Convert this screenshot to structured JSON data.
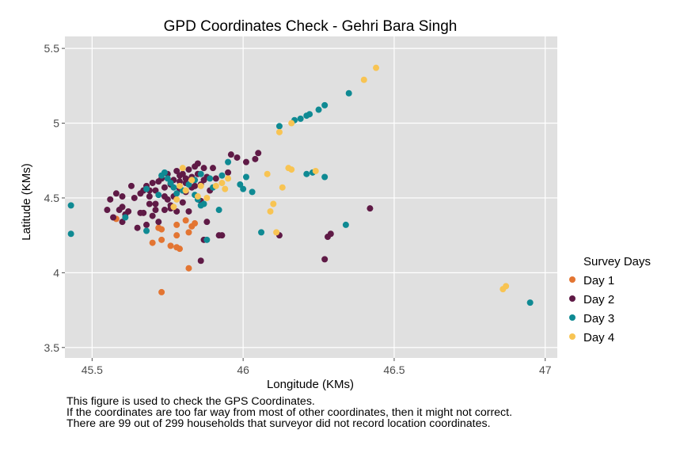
{
  "chart_data": {
    "type": "scatter",
    "title": "GPD Coordinates Check - Gehri Bara Singh",
    "xlabel": "Longitude (KMs)",
    "ylabel": "Latitude (KMs)",
    "xlim": [
      45.41,
      47.04
    ],
    "ylim": [
      3.43,
      5.58
    ],
    "xticks": [
      45.5,
      46,
      46.5,
      47
    ],
    "xtick_labels": [
      "45.5",
      "46",
      "46.5",
      "47"
    ],
    "yticks": [
      3.5,
      4,
      4.5,
      5,
      5.5
    ],
    "ytick_labels": [
      "3.5",
      "4",
      "4.5",
      "5",
      "5.5"
    ],
    "grid": true,
    "legend": {
      "title": "Survey Days",
      "placement": "right"
    },
    "series": [
      {
        "name": "Day 1",
        "color": "#e37532",
        "points": [
          [
            45.58,
            4.36
          ],
          [
            45.7,
            4.2
          ],
          [
            45.72,
            4.3
          ],
          [
            45.73,
            4.29
          ],
          [
            45.73,
            4.22
          ],
          [
            45.76,
            4.18
          ],
          [
            45.78,
            4.32
          ],
          [
            45.78,
            4.25
          ],
          [
            45.79,
            4.16
          ],
          [
            45.81,
            4.35
          ],
          [
            45.82,
            4.03
          ],
          [
            45.82,
            4.27
          ],
          [
            45.83,
            4.31
          ],
          [
            45.73,
            3.87
          ],
          [
            45.72,
            4.3
          ],
          [
            45.78,
            4.17
          ],
          [
            45.84,
            4.33
          ]
        ]
      },
      {
        "name": "Day 2",
        "color": "#5f1a46",
        "points": [
          [
            45.55,
            4.42
          ],
          [
            45.56,
            4.49
          ],
          [
            45.57,
            4.37
          ],
          [
            45.58,
            4.53
          ],
          [
            45.59,
            4.42
          ],
          [
            45.6,
            4.51
          ],
          [
            45.6,
            4.44
          ],
          [
            45.6,
            4.34
          ],
          [
            45.61,
            4.39
          ],
          [
            45.62,
            4.41
          ],
          [
            45.63,
            4.58
          ],
          [
            45.64,
            4.5
          ],
          [
            45.65,
            4.3
          ],
          [
            45.66,
            4.4
          ],
          [
            45.67,
            4.55
          ],
          [
            45.67,
            4.4
          ],
          [
            45.68,
            4.58
          ],
          [
            45.68,
            4.32
          ],
          [
            45.69,
            4.46
          ],
          [
            45.69,
            4.55
          ],
          [
            45.7,
            4.6
          ],
          [
            45.7,
            4.38
          ],
          [
            45.71,
            4.55
          ],
          [
            45.71,
            4.42
          ],
          [
            45.72,
            4.61
          ],
          [
            45.72,
            4.34
          ],
          [
            45.73,
            4.63
          ],
          [
            45.74,
            4.51
          ],
          [
            45.74,
            4.42
          ],
          [
            45.75,
            4.49
          ],
          [
            45.75,
            4.66
          ],
          [
            45.76,
            4.59
          ],
          [
            45.76,
            4.45
          ],
          [
            45.77,
            4.62
          ],
          [
            45.77,
            4.51
          ],
          [
            45.78,
            4.68
          ],
          [
            45.78,
            4.41
          ],
          [
            45.79,
            4.65
          ],
          [
            45.79,
            4.56
          ],
          [
            45.8,
            4.66
          ],
          [
            45.8,
            4.47
          ],
          [
            45.81,
            4.63
          ],
          [
            45.81,
            4.54
          ],
          [
            45.82,
            4.69
          ],
          [
            45.82,
            4.41
          ],
          [
            45.83,
            4.64
          ],
          [
            45.84,
            4.71
          ],
          [
            45.84,
            4.58
          ],
          [
            45.85,
            4.73
          ],
          [
            45.85,
            4.66
          ],
          [
            45.86,
            4.59
          ],
          [
            45.86,
            4.48
          ],
          [
            45.87,
            4.7
          ],
          [
            45.88,
            4.64
          ],
          [
            45.88,
            4.34
          ],
          [
            45.89,
            4.55
          ],
          [
            45.9,
            4.7
          ],
          [
            45.91,
            4.63
          ],
          [
            45.92,
            4.25
          ],
          [
            45.93,
            4.25
          ],
          [
            45.95,
            4.67
          ],
          [
            45.96,
            4.79
          ],
          [
            45.98,
            4.77
          ],
          [
            46.01,
            4.74
          ],
          [
            46.04,
            4.76
          ],
          [
            46.05,
            4.8
          ],
          [
            46.12,
            4.25
          ],
          [
            46.27,
            4.09
          ],
          [
            46.28,
            4.24
          ],
          [
            46.29,
            4.26
          ],
          [
            46.42,
            4.43
          ],
          [
            45.86,
            4.08
          ],
          [
            45.87,
            4.22
          ],
          [
            45.71,
            4.46
          ],
          [
            45.66,
            4.53
          ],
          [
            45.79,
            4.61
          ],
          [
            45.83,
            4.57
          ],
          [
            45.87,
            4.62
          ],
          [
            45.76,
            4.43
          ],
          [
            45.81,
            4.6
          ],
          [
            45.69,
            4.51
          ],
          [
            45.74,
            4.57
          ]
        ]
      },
      {
        "name": "Day 3",
        "color": "#0f8a93",
        "points": [
          [
            45.43,
            4.45
          ],
          [
            45.43,
            4.26
          ],
          [
            45.61,
            4.37
          ],
          [
            45.68,
            4.28
          ],
          [
            45.68,
            4.56
          ],
          [
            45.72,
            4.52
          ],
          [
            45.73,
            4.65
          ],
          [
            45.74,
            4.67
          ],
          [
            45.75,
            4.63
          ],
          [
            45.76,
            4.6
          ],
          [
            45.77,
            4.57
          ],
          [
            45.78,
            4.53
          ],
          [
            45.8,
            4.55
          ],
          [
            45.82,
            4.59
          ],
          [
            45.84,
            4.62
          ],
          [
            45.85,
            4.49
          ],
          [
            45.86,
            4.66
          ],
          [
            45.87,
            4.46
          ],
          [
            45.88,
            4.22
          ],
          [
            45.89,
            4.63
          ],
          [
            45.9,
            4.57
          ],
          [
            45.92,
            4.42
          ],
          [
            45.93,
            4.65
          ],
          [
            45.95,
            4.74
          ],
          [
            45.99,
            4.59
          ],
          [
            46.0,
            4.56
          ],
          [
            46.01,
            4.64
          ],
          [
            46.03,
            4.54
          ],
          [
            46.06,
            4.27
          ],
          [
            46.12,
            4.98
          ],
          [
            46.17,
            5.02
          ],
          [
            46.19,
            5.03
          ],
          [
            46.21,
            5.05
          ],
          [
            46.22,
            5.06
          ],
          [
            46.21,
            4.66
          ],
          [
            46.23,
            4.67
          ],
          [
            46.25,
            5.09
          ],
          [
            46.27,
            5.12
          ],
          [
            46.27,
            4.64
          ],
          [
            46.34,
            4.32
          ],
          [
            46.35,
            5.2
          ],
          [
            46.95,
            3.8
          ],
          [
            45.84,
            4.52
          ],
          [
            45.86,
            4.45
          ]
        ]
      },
      {
        "name": "Day 4",
        "color": "#f8c453",
        "points": [
          [
            45.77,
            4.44
          ],
          [
            45.79,
            4.58
          ],
          [
            45.8,
            4.7
          ],
          [
            45.81,
            4.55
          ],
          [
            45.83,
            4.62
          ],
          [
            45.85,
            4.51
          ],
          [
            45.86,
            4.58
          ],
          [
            45.88,
            4.5
          ],
          [
            45.91,
            4.58
          ],
          [
            45.93,
            4.6
          ],
          [
            45.94,
            4.56
          ],
          [
            45.95,
            4.63
          ],
          [
            46.08,
            4.66
          ],
          [
            46.09,
            4.41
          ],
          [
            46.1,
            4.46
          ],
          [
            46.11,
            4.27
          ],
          [
            46.12,
            4.94
          ],
          [
            46.13,
            4.57
          ],
          [
            46.15,
            4.7
          ],
          [
            46.16,
            4.69
          ],
          [
            46.16,
            5.0
          ],
          [
            46.24,
            4.68
          ],
          [
            46.4,
            5.29
          ],
          [
            46.44,
            5.37
          ],
          [
            46.86,
            3.89
          ],
          [
            46.87,
            3.91
          ],
          [
            45.78,
            4.49
          ]
        ]
      }
    ]
  },
  "caption": {
    "line1": "This figure is used to check the GPS Coordinates.",
    "line2": "If the coordinates are too far way from most of other coordinates, then it might not correct.",
    "line3": "There are 99 out of 299 households that surveyor did not record location coordinates."
  }
}
